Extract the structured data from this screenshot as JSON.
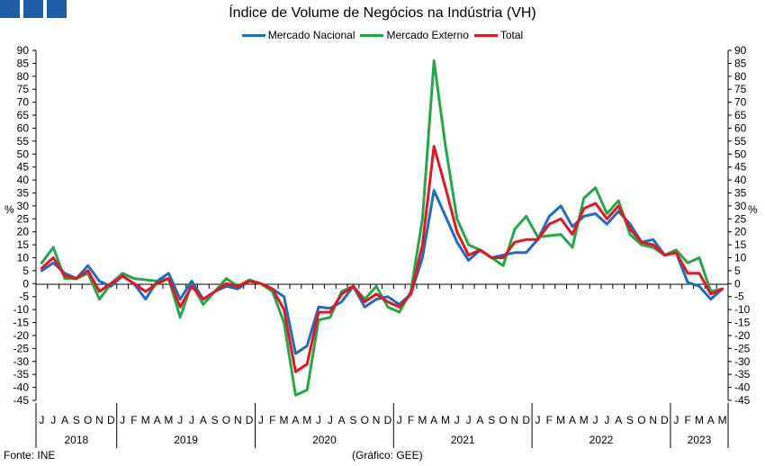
{
  "brand": {
    "color": "#1f5fa8"
  },
  "footer": {
    "source": "Fonte: INE",
    "credit": "(Gráfico: GEE)"
  },
  "chart_data": {
    "type": "line",
    "title": "Índice de Volume de Negócios na Indústria (VH)",
    "ylabel_left": "%",
    "ylabel_right": "%",
    "ylim": [
      -45,
      90
    ],
    "ytick_step": 5,
    "legend_position": "top-center",
    "grid": false,
    "month_labels": [
      "J",
      "J",
      "A",
      "S",
      "O",
      "N",
      "D",
      "J",
      "F",
      "M",
      "A",
      "M",
      "J",
      "J",
      "A",
      "S",
      "O",
      "N",
      "D",
      "J",
      "F",
      "M",
      "A",
      "M",
      "J",
      "J",
      "A",
      "S",
      "O",
      "N",
      "D",
      "J",
      "F",
      "M",
      "A",
      "M",
      "J",
      "J",
      "A",
      "S",
      "O",
      "N",
      "D",
      "J",
      "F",
      "M",
      "A",
      "M",
      "J",
      "J",
      "A",
      "S",
      "O",
      "N",
      "D",
      "J",
      "F",
      "M",
      "A",
      "M"
    ],
    "year_groups": [
      {
        "label": "2018",
        "months": 7
      },
      {
        "label": "2019",
        "months": 12
      },
      {
        "label": "2020",
        "months": 12
      },
      {
        "label": "2021",
        "months": 12
      },
      {
        "label": "2022",
        "months": 12
      },
      {
        "label": "2023",
        "months": 5
      }
    ],
    "series": [
      {
        "name": "Mercado Nacional",
        "color": "#1f6cc1",
        "values": [
          5,
          8,
          4,
          2,
          7,
          1,
          -1,
          3,
          0,
          -6,
          1,
          4,
          -6,
          1,
          -6,
          -3,
          -1,
          -2,
          1,
          0,
          -2,
          -5,
          -27,
          -24,
          -9,
          -9.5,
          -7,
          -1,
          -9,
          -6,
          -5,
          -8,
          -4,
          10,
          36,
          26,
          16,
          9,
          13,
          10,
          11,
          12,
          12,
          17,
          26,
          30,
          22,
          26,
          27,
          23,
          28,
          23,
          16,
          17,
          11,
          12,
          0.5,
          -1,
          -6,
          -2
        ]
      },
      {
        "name": "Mercado Externo",
        "color": "#22a947",
        "values": [
          8,
          14,
          2,
          2,
          4,
          -6,
          0,
          4,
          2,
          1.5,
          1,
          2,
          -13,
          0,
          -8,
          -3,
          2,
          -1,
          1.5,
          0,
          -3,
          -15,
          -43,
          -41,
          -14,
          -13,
          -3,
          -1,
          -6,
          -1,
          -9,
          -11,
          -3,
          25,
          86,
          53,
          25,
          15,
          13,
          10,
          7,
          21,
          26,
          18,
          18.5,
          19,
          14,
          33,
          37,
          27,
          32,
          19,
          15,
          14,
          11,
          13,
          8,
          10,
          -3,
          -2
        ]
      },
      {
        "name": "Total",
        "color": "#e8141e",
        "values": [
          6,
          10,
          3,
          2,
          5,
          -3,
          0,
          3,
          0,
          -3,
          0,
          2,
          -9,
          -1,
          -6,
          -3,
          0,
          -1,
          1,
          0,
          -2,
          -10,
          -34,
          -31,
          -11,
          -11,
          -4,
          -1,
          -7,
          -4,
          -7,
          -9,
          -4,
          15,
          53,
          37,
          20,
          11,
          13,
          10,
          10,
          16,
          17,
          17,
          23,
          25,
          19,
          29,
          31,
          25,
          30,
          21,
          16,
          15,
          11,
          12,
          4,
          4,
          -4,
          -2
        ]
      }
    ]
  }
}
